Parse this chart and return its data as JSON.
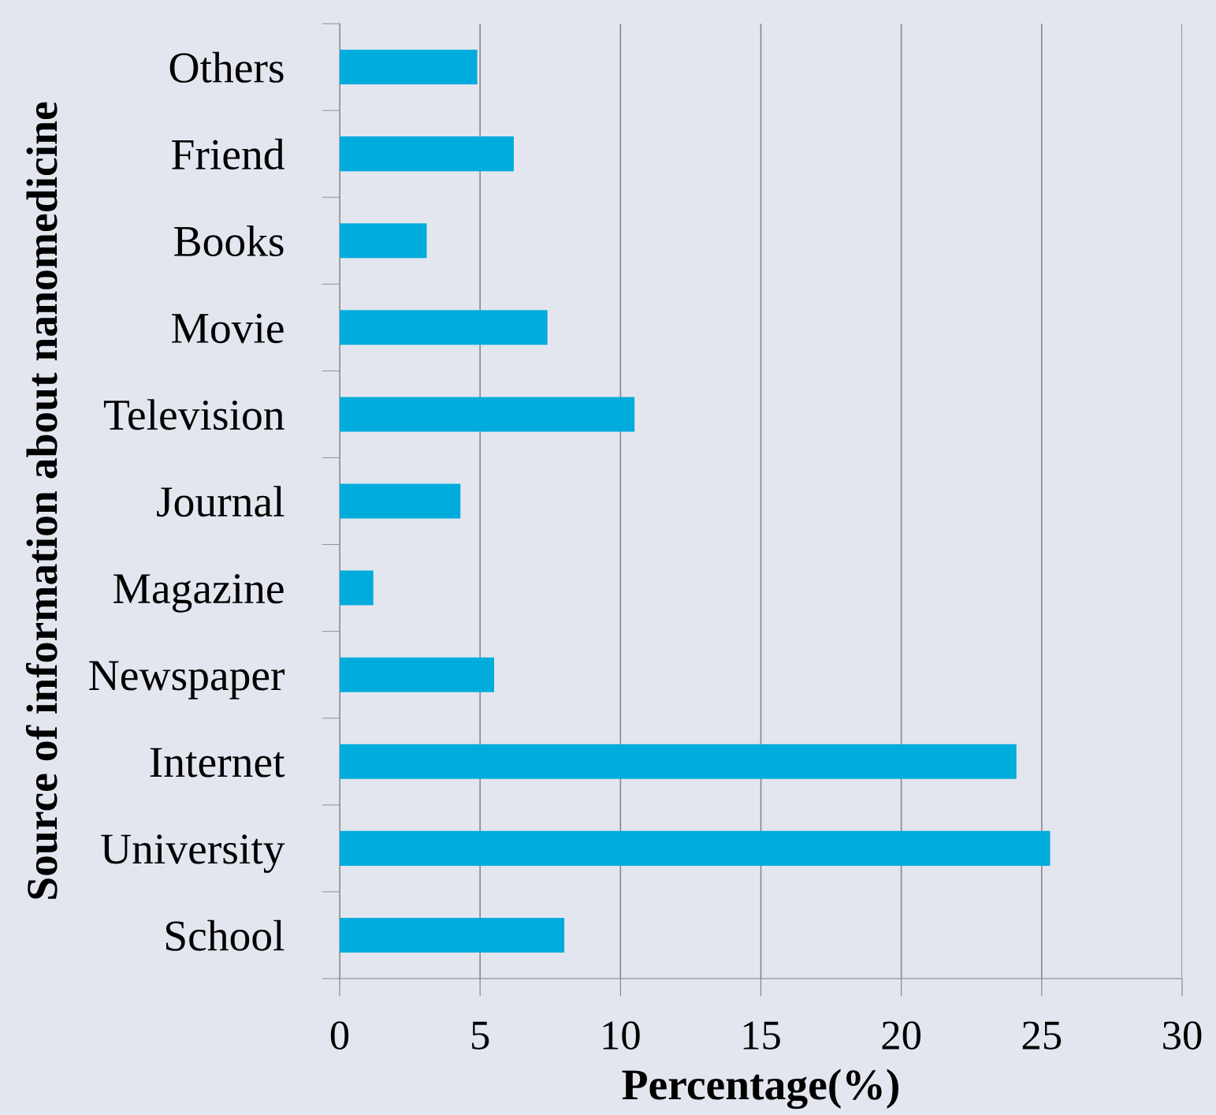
{
  "chart_data": {
    "type": "bar",
    "orientation": "horizontal",
    "xlabel": "Percentage(%)",
    "ylabel": "Source of information about nanomedicine",
    "categories": [
      "Others",
      "Friend",
      "Books",
      "Movie",
      "Television",
      "Journal",
      "Magazine",
      "Newspaper",
      "Internet",
      "University",
      "School"
    ],
    "values": [
      4.9,
      6.2,
      3.1,
      7.4,
      10.5,
      4.3,
      1.2,
      5.5,
      24.1,
      25.3,
      8.0
    ],
    "color": "#00acdc",
    "xlim": [
      0,
      30
    ],
    "xticks": [
      0,
      5,
      10,
      15,
      20,
      25,
      30
    ],
    "grid": "x",
    "legend": false
  }
}
